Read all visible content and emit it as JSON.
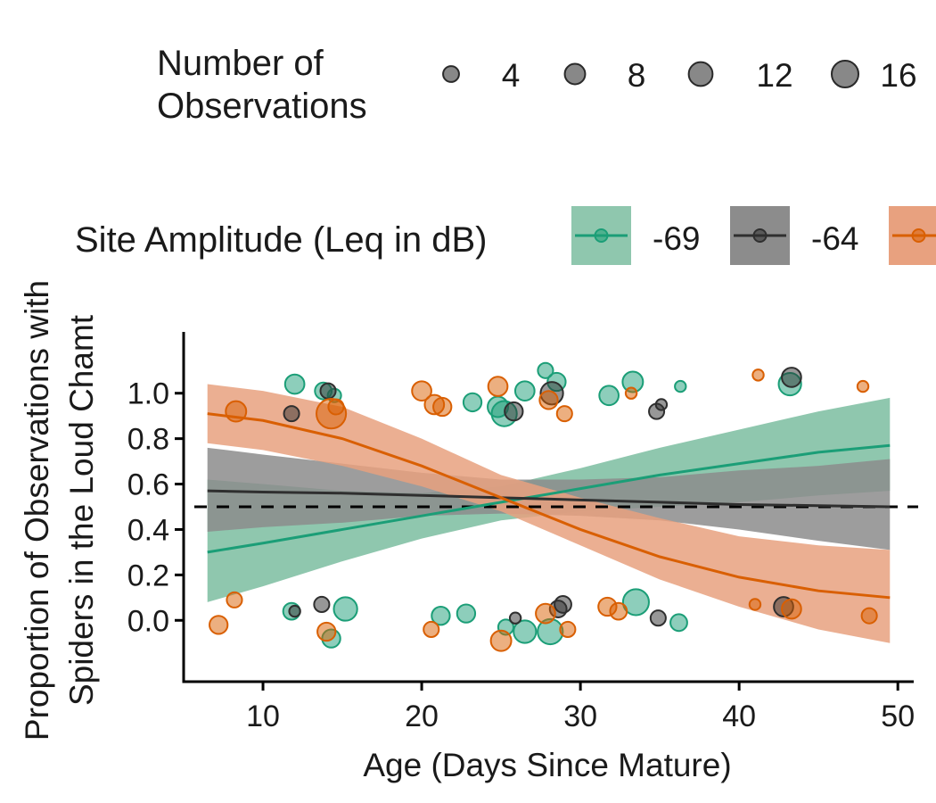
{
  "chart_data": {
    "type": "scatter",
    "title": "",
    "xlabel": "Age (Days Since Mature)",
    "ylabel_lines": [
      "Proportion of Observations with",
      "Spiders in the Loud Chamt"
    ],
    "xlim": [
      5,
      51
    ],
    "ylim": [
      -0.27,
      1.27
    ],
    "x_ticks": [
      10,
      20,
      30,
      40,
      50
    ],
    "y_ticks": [
      0.0,
      0.2,
      0.4,
      0.6,
      0.8,
      1.0
    ],
    "y_tick_labels": [
      "0.0",
      "0.2",
      "0.4",
      "0.6",
      "0.8",
      "1.0"
    ],
    "reference_line_y": 0.5,
    "grid": false,
    "size_legend": {
      "title_lines": [
        "Number of",
        "Observations"
      ],
      "entries": [
        {
          "label": "4",
          "value": 4
        },
        {
          "label": "8",
          "value": 8
        },
        {
          "label": "12",
          "value": 12
        },
        {
          "label": "16",
          "value": 16
        }
      ]
    },
    "color_legend": {
      "title": "Site Amplitude (Leq in dB)",
      "placement": "top"
    },
    "series": [
      {
        "name": "-69",
        "color": "#1b9e77",
        "fill": "#8fc7ae",
        "fit_x": [
          6.5,
          10,
          15,
          20,
          25,
          30,
          35,
          40,
          45,
          49.5
        ],
        "fit_y": [
          0.3,
          0.34,
          0.4,
          0.46,
          0.52,
          0.58,
          0.64,
          0.69,
          0.74,
          0.77
        ],
        "ci_low": [
          0.08,
          0.15,
          0.26,
          0.36,
          0.44,
          0.48,
          0.5,
          0.52,
          0.55,
          0.57
        ],
        "ci_high": [
          0.62,
          0.6,
          0.57,
          0.56,
          0.59,
          0.67,
          0.76,
          0.84,
          0.92,
          0.98
        ],
        "points": [
          {
            "x": 12,
            "y": 1.04,
            "n": 6
          },
          {
            "x": 13.8,
            "y": 1.01,
            "n": 4
          },
          {
            "x": 14.5,
            "y": 0.99,
            "n": 2
          },
          {
            "x": 23.2,
            "y": 0.96,
            "n": 5
          },
          {
            "x": 24.8,
            "y": 0.94,
            "n": 7
          },
          {
            "x": 25.2,
            "y": 0.91,
            "n": 12
          },
          {
            "x": 26.5,
            "y": 1.01,
            "n": 6
          },
          {
            "x": 27.8,
            "y": 1.1,
            "n": 3
          },
          {
            "x": 28.5,
            "y": 1.05,
            "n": 5
          },
          {
            "x": 31.8,
            "y": 0.99,
            "n": 6
          },
          {
            "x": 33.3,
            "y": 1.05,
            "n": 7
          },
          {
            "x": 36.3,
            "y": 1.03,
            "n": 1
          },
          {
            "x": 43.2,
            "y": 1.04,
            "n": 9
          },
          {
            "x": 11.8,
            "y": 0.04,
            "n": 4
          },
          {
            "x": 15.2,
            "y": 0.05,
            "n": 10
          },
          {
            "x": 14.3,
            "y": -0.08,
            "n": 5
          },
          {
            "x": 21.2,
            "y": 0.02,
            "n": 5
          },
          {
            "x": 22.8,
            "y": 0.03,
            "n": 5
          },
          {
            "x": 25.3,
            "y": -0.03,
            "n": 3
          },
          {
            "x": 26.5,
            "y": -0.05,
            "n": 9
          },
          {
            "x": 28.1,
            "y": -0.05,
            "n": 12
          },
          {
            "x": 33.5,
            "y": 0.08,
            "n": 13
          },
          {
            "x": 36.2,
            "y": -0.01,
            "n": 4
          }
        ]
      },
      {
        "name": "-64",
        "color": "#2f2f2f",
        "fill": "#8c8c8c",
        "fit_x": [
          6.5,
          10,
          15,
          20,
          25,
          30,
          35,
          40,
          45,
          49.5
        ],
        "fit_y": [
          0.57,
          0.565,
          0.56,
          0.55,
          0.54,
          0.53,
          0.52,
          0.51,
          0.505,
          0.5
        ],
        "ci_low": [
          0.39,
          0.41,
          0.43,
          0.46,
          0.47,
          0.46,
          0.44,
          0.4,
          0.35,
          0.31
        ],
        "ci_high": [
          0.76,
          0.73,
          0.69,
          0.65,
          0.62,
          0.62,
          0.63,
          0.66,
          0.68,
          0.71
        ],
        "points": [
          {
            "x": 11.8,
            "y": 0.91,
            "n": 3
          },
          {
            "x": 14.1,
            "y": 1.01,
            "n": 3
          },
          {
            "x": 25.8,
            "y": 0.92,
            "n": 5
          },
          {
            "x": 28.2,
            "y": 1.0,
            "n": 9
          },
          {
            "x": 34.8,
            "y": 0.92,
            "n": 3
          },
          {
            "x": 35.1,
            "y": 0.95,
            "n": 1
          },
          {
            "x": 43.3,
            "y": 1.07,
            "n": 6
          },
          {
            "x": 12,
            "y": 0.04,
            "n": 1
          },
          {
            "x": 13.7,
            "y": 0.07,
            "n": 3
          },
          {
            "x": 25.9,
            "y": 0.01,
            "n": 1
          },
          {
            "x": 28.6,
            "y": 0.05,
            "n": 4
          },
          {
            "x": 28.9,
            "y": 0.07,
            "n": 4
          },
          {
            "x": 34.9,
            "y": 0.01,
            "n": 3
          },
          {
            "x": 42.8,
            "y": 0.06,
            "n": 6
          }
        ]
      },
      {
        "name": "",
        "color": "#d95f02",
        "fill": "#e8a17f",
        "fit_x": [
          6.5,
          10,
          15,
          20,
          25,
          30,
          35,
          40,
          45,
          49.5
        ],
        "fit_y": [
          0.91,
          0.88,
          0.8,
          0.68,
          0.54,
          0.4,
          0.28,
          0.19,
          0.13,
          0.1
        ],
        "ci_low": [
          0.78,
          0.75,
          0.68,
          0.59,
          0.48,
          0.33,
          0.18,
          0.06,
          -0.04,
          -0.1
        ],
        "ci_high": [
          1.04,
          1.01,
          0.94,
          0.8,
          0.64,
          0.54,
          0.45,
          0.37,
          0.33,
          0.31
        ],
        "points": [
          {
            "x": 8.3,
            "y": 0.92,
            "n": 7
          },
          {
            "x": 14.3,
            "y": 0.91,
            "n": 18
          },
          {
            "x": 14.6,
            "y": 0.94,
            "n": 3
          },
          {
            "x": 20,
            "y": 1.01,
            "n": 6
          },
          {
            "x": 20.8,
            "y": 0.95,
            "n": 6
          },
          {
            "x": 21.3,
            "y": 0.94,
            "n": 5
          },
          {
            "x": 24.8,
            "y": 1.03,
            "n": 6
          },
          {
            "x": 28,
            "y": 0.97,
            "n": 5
          },
          {
            "x": 29,
            "y": 0.91,
            "n": 3
          },
          {
            "x": 33.2,
            "y": 1.0,
            "n": 1
          },
          {
            "x": 41.2,
            "y": 1.08,
            "n": 1
          },
          {
            "x": 47.8,
            "y": 1.03,
            "n": 1
          },
          {
            "x": 7.2,
            "y": -0.02,
            "n": 5
          },
          {
            "x": 8.2,
            "y": 0.09,
            "n": 3
          },
          {
            "x": 14,
            "y": -0.05,
            "n": 5
          },
          {
            "x": 20.6,
            "y": -0.04,
            "n": 3
          },
          {
            "x": 25,
            "y": -0.09,
            "n": 7
          },
          {
            "x": 27.8,
            "y": 0.03,
            "n": 6
          },
          {
            "x": 29.2,
            "y": -0.04,
            "n": 3
          },
          {
            "x": 31.7,
            "y": 0.06,
            "n": 5
          },
          {
            "x": 32.4,
            "y": 0.04,
            "n": 4
          },
          {
            "x": 41,
            "y": 0.07,
            "n": 1
          },
          {
            "x": 43.3,
            "y": 0.05,
            "n": 6
          },
          {
            "x": 48.2,
            "y": 0.02,
            "n": 3
          }
        ]
      }
    ]
  }
}
